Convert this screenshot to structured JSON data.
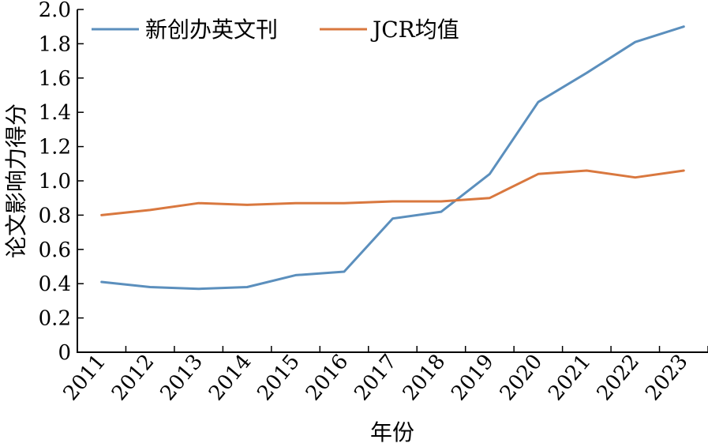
{
  "chart_data": {
    "type": "line",
    "xlabel": "年份",
    "ylabel": "论文影响力得分",
    "categories": [
      "2011",
      "2012",
      "2013",
      "2014",
      "2015",
      "2016",
      "2017",
      "2018",
      "2019",
      "2020",
      "2021",
      "2022",
      "2023"
    ],
    "ylim": [
      0,
      2.0
    ],
    "yticks": [
      "0",
      "0.2",
      "0.4",
      "0.6",
      "0.8",
      "1.0",
      "1.2",
      "1.4",
      "1.6",
      "1.8",
      "2.0"
    ],
    "legend_position": "top-left",
    "grid": false,
    "series": [
      {
        "name": "新创办英文刊",
        "color": "#5b8fbd",
        "values": [
          0.41,
          0.38,
          0.37,
          0.38,
          0.45,
          0.47,
          0.78,
          0.82,
          1.04,
          1.46,
          1.63,
          1.81,
          1.9
        ]
      },
      {
        "name": "JCR均值",
        "color": "#d9783f",
        "values": [
          0.8,
          0.83,
          0.87,
          0.86,
          0.87,
          0.87,
          0.88,
          0.88,
          0.9,
          1.04,
          1.06,
          1.02,
          1.06
        ]
      }
    ]
  }
}
